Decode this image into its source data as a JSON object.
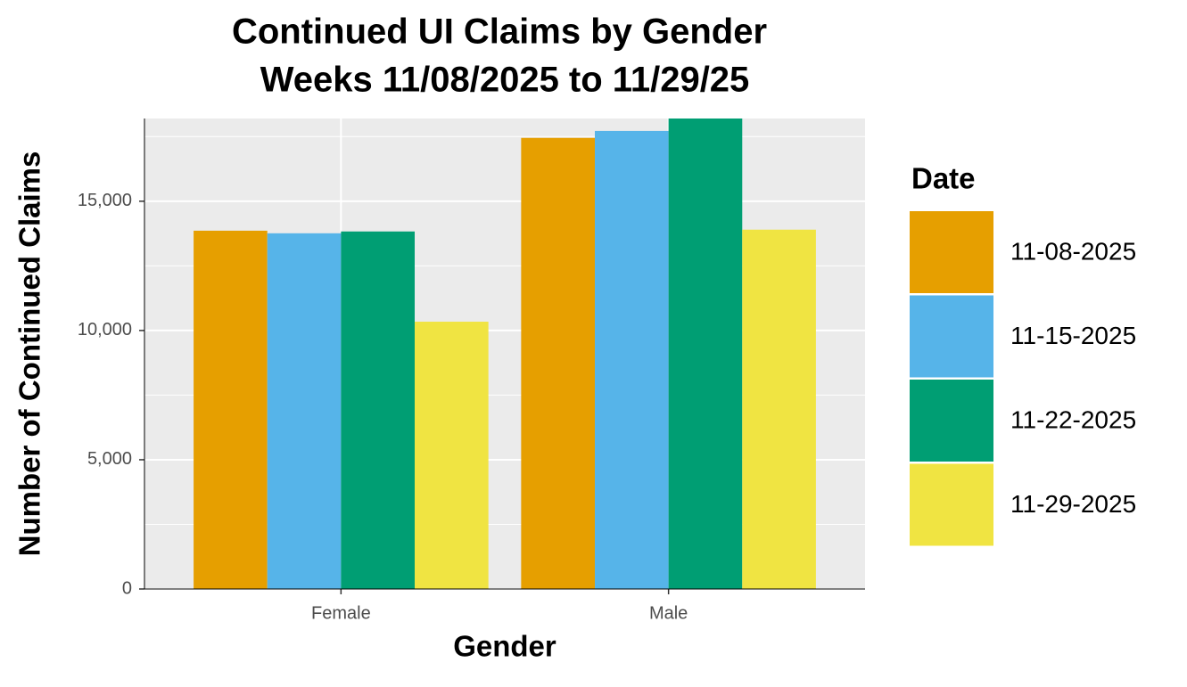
{
  "chart_data": {
    "type": "bar",
    "title": [
      "Continued UI Claims by Gender",
      "Weeks  11/08/2025 to 11/29/25"
    ],
    "x_label": "Gender",
    "y_label": "Number of Continued Claims",
    "categories": [
      "Female",
      "Male"
    ],
    "legend_title": "Date",
    "series": [
      {
        "name": "11-08-2025",
        "color": "#E69F00",
        "values": [
          13860,
          17450
        ]
      },
      {
        "name": "11-15-2025",
        "color": "#56B4E9",
        "values": [
          13760,
          17720
        ]
      },
      {
        "name": "11-22-2025",
        "color": "#009E73",
        "values": [
          13830,
          18200
        ]
      },
      {
        "name": "11-29-2025",
        "color": "#F0E442",
        "values": [
          10340,
          13900
        ]
      }
    ],
    "ylim": [
      0,
      18200
    ],
    "yticks": [
      0,
      {
        "value": 5000,
        "label": "5,000"
      },
      {
        "value": 10000,
        "label": "10,000"
      },
      {
        "value": 15000,
        "label": "15,000"
      }
    ],
    "grid": true,
    "legend": "right"
  }
}
